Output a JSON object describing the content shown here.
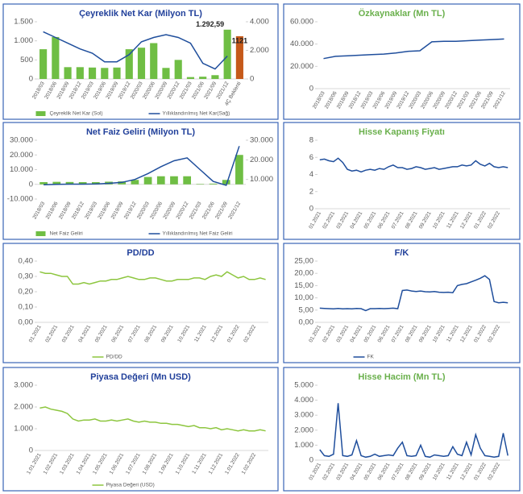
{
  "chart_data": [
    {
      "type": "bar",
      "title": "Çeyreklik Net Kar (Milyon TL)",
      "title_color": "#203f9a",
      "legend": true,
      "categories": [
        "2018/03",
        "2018/06",
        "2018/09",
        "2018/12",
        "2019/03",
        "2019/06",
        "2019/09",
        "2019/12",
        "2020/03",
        "2020/06",
        "2020/09",
        "2020/12",
        "2021/03",
        "2021/06",
        "2021/09",
        "2021/12",
        "4Ç Beklenti"
      ],
      "ylim": [
        0,
        1500
      ],
      "yticks": [
        0,
        500,
        {
          "value": 1000,
          "label": "1.000"
        },
        {
          "value": 1500,
          "label": "1.500"
        }
      ],
      "y2lim": [
        0,
        4000
      ],
      "y2ticks": [
        0,
        {
          "value": 2000,
          "label": "2.000"
        },
        {
          "value": 4000,
          "label": "4.000"
        }
      ],
      "series": [
        {
          "name": "Çeyreklik Net Kar (Sol)",
          "type": "bar",
          "color": "#6fbe44",
          "colors": [
            "#6fbe44",
            "#6fbe44",
            "#6fbe44",
            "#6fbe44",
            "#6fbe44",
            "#6fbe44",
            "#6fbe44",
            "#6fbe44",
            "#6fbe44",
            "#6fbe44",
            "#6fbe44",
            "#6fbe44",
            "#6fbe44",
            "#6fbe44",
            "#6fbe44",
            "#6fbe44",
            "#c5591a"
          ],
          "values": [
            780,
            1100,
            310,
            310,
            300,
            290,
            300,
            780,
            820,
            940,
            290,
            500,
            50,
            60,
            100,
            1292.59,
            1121
          ],
          "value_labels": [
            null,
            null,
            null,
            null,
            null,
            null,
            null,
            null,
            null,
            null,
            null,
            null,
            null,
            null,
            null,
            "1.292,59",
            "1121"
          ]
        },
        {
          "name": "Yıllıklandırılmış Net Kar(Sağ)",
          "type": "line",
          "axis": "y2",
          "color": "#1f4e9c",
          "values": [
            3300,
            2900,
            2500,
            2100,
            1800,
            1200,
            1200,
            1700,
            2600,
            2900,
            3100,
            2900,
            2500,
            1100,
            700,
            1600,
            null
          ]
        }
      ]
    },
    {
      "type": "line",
      "title": "Özkaynaklar (Mn TL)",
      "title_color": "#6ab04c",
      "legend": false,
      "categories": [
        "2018/03",
        "2018/06",
        "2018/09",
        "2018/12",
        "2019/03",
        "2019/06",
        "2019/09",
        "2019/12",
        "2020/03",
        "2020/06",
        "2020/09",
        "2020/12",
        "2021/03",
        "2021/06",
        "2021/09",
        "2021/12"
      ],
      "ylim": [
        0,
        60000
      ],
      "yticks": [
        0,
        {
          "value": 20000,
          "label": "20.000"
        },
        {
          "value": 40000,
          "label": "40.000"
        },
        {
          "value": 60000,
          "label": "60.000"
        }
      ],
      "series": [
        {
          "name": "Özkaynaklar",
          "type": "line",
          "color": "#1f4e9c",
          "values": [
            27000,
            29000,
            29500,
            30000,
            30500,
            31000,
            32000,
            33500,
            34000,
            42000,
            42500,
            42500,
            43000,
            43500,
            44000,
            44500
          ]
        }
      ]
    },
    {
      "type": "bar",
      "title": "Net Faiz Geliri (Milyon TL)",
      "title_color": "#203f9a",
      "legend": true,
      "categories": [
        "2018/03",
        "2018/06",
        "2018/09",
        "2018/12",
        "2019/03",
        "2019/06",
        "2019/09",
        "2019/12",
        "2020/03",
        "2020/06",
        "2020/09",
        "2020/12",
        "2021/03",
        "2021/06",
        "2021/09",
        "2021/12"
      ],
      "ylim": [
        -10000,
        30000
      ],
      "yticks": [
        {
          "value": -10000,
          "label": "-10.000"
        },
        0,
        {
          "value": 10000,
          "label": "10.000"
        },
        {
          "value": 20000,
          "label": "20.000"
        },
        {
          "value": 30000,
          "label": "30.000"
        }
      ],
      "y2lim": [
        0,
        30000
      ],
      "y2ticks": [
        {
          "value": 10000,
          "label": "10.000"
        },
        {
          "value": 20000,
          "label": "20.000"
        },
        {
          "value": 30000,
          "label": "30.000"
        }
      ],
      "series": [
        {
          "name": "Net Faiz Geliri",
          "type": "bar",
          "color": "#6fbe44",
          "values": [
            1500,
            1700,
            1600,
            1500,
            1500,
            1800,
            2000,
            3000,
            5000,
            5500,
            5500,
            5500,
            300,
            500,
            3000,
            20000
          ]
        },
        {
          "name": "Yıllıklandırılmış Net Faiz Geliri",
          "type": "line",
          "axis": "y2",
          "color": "#1f4e9c",
          "values": [
            7300,
            7500,
            7600,
            7600,
            7700,
            8000,
            8500,
            10000,
            13000,
            16500,
            19500,
            21000,
            15000,
            9000,
            7000,
            27000
          ]
        }
      ]
    },
    {
      "type": "line",
      "title": "Hisse Kapanış Fiyatı",
      "title_color": "#6ab04c",
      "legend": false,
      "categories": [
        "01.2021",
        null,
        null,
        "02.2021",
        null,
        null,
        "03.2021",
        null,
        null,
        "04.2021",
        null,
        null,
        "05.2021",
        null,
        null,
        "06.2021",
        null,
        null,
        "07.2021",
        null,
        null,
        "08.2021",
        null,
        null,
        "09.2021",
        null,
        null,
        "10.2021",
        null,
        null,
        "11.2021",
        null,
        null,
        "12.2021",
        null,
        null,
        "01.2022",
        null,
        null,
        "02.2022",
        null,
        null
      ],
      "ylim": [
        0,
        8
      ],
      "yticks": [
        0,
        2,
        4,
        6,
        8
      ],
      "series": [
        {
          "name": "Hisse Kapanış Fiyatı",
          "type": "line",
          "color": "#1f4e9c",
          "values": [
            5.7,
            5.8,
            5.6,
            5.5,
            5.9,
            5.4,
            4.6,
            4.4,
            4.5,
            4.3,
            4.5,
            4.6,
            4.5,
            4.7,
            4.6,
            4.9,
            5.1,
            4.8,
            4.8,
            4.6,
            4.7,
            4.9,
            4.8,
            4.6,
            4.7,
            4.8,
            4.6,
            4.7,
            4.8,
            4.9,
            4.9,
            5.1,
            5.0,
            5.1,
            5.6,
            5.2,
            5.0,
            5.3,
            4.9,
            4.8,
            4.9,
            4.8
          ]
        }
      ]
    },
    {
      "type": "line",
      "title": "PD/DD",
      "title_color": "#203f9a",
      "legend": true,
      "categories": [
        "01.2021",
        null,
        null,
        "02.2021",
        null,
        null,
        "03.2021",
        null,
        null,
        "04.2021",
        null,
        null,
        "05.2021",
        null,
        null,
        "06.2021",
        null,
        null,
        "07.2021",
        null,
        null,
        "08.2021",
        null,
        null,
        "09.2021",
        null,
        null,
        "10.2021",
        null,
        null,
        "11.2021",
        null,
        null,
        "12.2021",
        null,
        null,
        "01.2022",
        null,
        null,
        "02.2022",
        null,
        null
      ],
      "ylim": [
        0,
        0.4
      ],
      "yticks": [
        {
          "value": 0,
          "label": "0,00"
        },
        {
          "value": 0.1,
          "label": "0,10"
        },
        {
          "value": 0.2,
          "label": "0,20"
        },
        {
          "value": 0.3,
          "label": "0,30"
        },
        {
          "value": 0.4,
          "label": "0,40"
        }
      ],
      "series": [
        {
          "name": "PD/DD",
          "type": "line",
          "color": "#8dc63f",
          "values": [
            0.33,
            0.32,
            0.32,
            0.31,
            0.3,
            0.3,
            0.25,
            0.25,
            0.26,
            0.25,
            0.26,
            0.27,
            0.27,
            0.28,
            0.28,
            0.29,
            0.3,
            0.29,
            0.28,
            0.28,
            0.29,
            0.29,
            0.28,
            0.27,
            0.27,
            0.28,
            0.28,
            0.28,
            0.29,
            0.29,
            0.28,
            0.3,
            0.31,
            0.3,
            0.33,
            0.31,
            0.29,
            0.3,
            0.28,
            0.28,
            0.29,
            0.28
          ]
        }
      ]
    },
    {
      "type": "line",
      "title": "F/K",
      "title_color": "#203f9a",
      "legend": true,
      "categories": [
        "01.2021",
        null,
        null,
        "02.2021",
        null,
        null,
        "03.2021",
        null,
        null,
        "04.2021",
        null,
        null,
        "05.2021",
        null,
        null,
        "06.2021",
        null,
        null,
        "07.2021",
        null,
        null,
        "08.2021",
        null,
        null,
        "09.2021",
        null,
        null,
        "10.2021",
        null,
        null,
        "11.2021",
        null,
        null,
        "12.2021",
        null,
        null,
        "01.2022",
        null,
        null,
        "02.2022",
        null,
        null
      ],
      "ylim": [
        0,
        25
      ],
      "yticks": [
        {
          "value": 0,
          "label": "0,00"
        },
        {
          "value": 5,
          "label": "5,00"
        },
        {
          "value": 10,
          "label": "10,00"
        },
        {
          "value": 15,
          "label": "15,00"
        },
        {
          "value": 20,
          "label": "20,00"
        },
        {
          "value": 25,
          "label": "25,00"
        }
      ],
      "series": [
        {
          "name": "FK",
          "type": "line",
          "color": "#1f4e9c",
          "values": [
            5.8,
            5.7,
            5.6,
            5.5,
            5.7,
            5.5,
            5.6,
            5.5,
            5.7,
            5.6,
            4.8,
            5.6,
            5.6,
            5.7,
            5.6,
            5.7,
            5.8,
            5.6,
            13.0,
            13.2,
            12.8,
            12.6,
            12.8,
            12.5,
            12.4,
            12.6,
            12.3,
            12.2,
            12.3,
            12.1,
            15.0,
            15.5,
            15.8,
            16.5,
            17.2,
            18.0,
            19.0,
            17.5,
            8.5,
            8.0,
            8.2,
            8.0
          ]
        }
      ]
    },
    {
      "type": "line",
      "title": "Piyasa Değeri (Mn  USD)",
      "title_color": "#203f9a",
      "legend": true,
      "categories": [
        "1.01.2021",
        null,
        null,
        "1.02.2021",
        null,
        null,
        "1.03.2021",
        null,
        null,
        "1.04.2021",
        null,
        null,
        "1.05.2021",
        null,
        null,
        "1.06.2021",
        null,
        null,
        "1.07.2021",
        null,
        null,
        "1.08.2021",
        null,
        null,
        "1.09.2021",
        null,
        null,
        "1.10.2021",
        null,
        null,
        "1.11.2021",
        null,
        null,
        "1.12.2021",
        null,
        null,
        "1.01.2022",
        null,
        null,
        "1.02.2022",
        null,
        null
      ],
      "ylim": [
        0,
        3000
      ],
      "yticks": [
        0,
        {
          "value": 1000,
          "label": "1.000"
        },
        {
          "value": 2000,
          "label": "2.000"
        },
        {
          "value": 3000,
          "label": "3.000"
        }
      ],
      "series": [
        {
          "name": "Piyasa Değeri (USD)",
          "type": "line",
          "color": "#8dc63f",
          "values": [
            1950,
            2000,
            1900,
            1850,
            1800,
            1700,
            1450,
            1350,
            1400,
            1400,
            1450,
            1350,
            1350,
            1400,
            1350,
            1400,
            1450,
            1350,
            1300,
            1350,
            1300,
            1300,
            1250,
            1250,
            1200,
            1200,
            1150,
            1100,
            1150,
            1050,
            1050,
            1000,
            1050,
            950,
            1000,
            950,
            900,
            950,
            900,
            900,
            950,
            900
          ]
        }
      ]
    },
    {
      "type": "line",
      "title": "Hisse Hacim (Mn TL)",
      "title_color": "#6ab04c",
      "legend": false,
      "categories": [
        "01.2021",
        null,
        null,
        "02.2021",
        null,
        null,
        "03.2021",
        null,
        null,
        "04.2021",
        null,
        null,
        "05.2021",
        null,
        null,
        "06.2021",
        null,
        null,
        "07.2021",
        null,
        null,
        "08.2021",
        null,
        null,
        "09.2021",
        null,
        null,
        "10.2021",
        null,
        null,
        "11.2021",
        null,
        null,
        "12.2021",
        null,
        null,
        "01.2022",
        null,
        null,
        "02.2022",
        null,
        null
      ],
      "ylim": [
        0,
        5000
      ],
      "yticks": [
        0,
        {
          "value": 1000,
          "label": "1.000"
        },
        {
          "value": 2000,
          "label": "2.000"
        },
        {
          "value": 3000,
          "label": "3.000"
        },
        {
          "value": 4000,
          "label": "4.000"
        },
        {
          "value": 5000,
          "label": "5.000"
        }
      ],
      "series": [
        {
          "name": "Hisse Hacim",
          "type": "line",
          "color": "#1f4e9c",
          "values": [
            700,
            300,
            250,
            400,
            3800,
            300,
            250,
            350,
            1300,
            300,
            200,
            250,
            400,
            250,
            300,
            350,
            300,
            800,
            1200,
            300,
            250,
            300,
            1000,
            250,
            200,
            350,
            300,
            250,
            300,
            900,
            400,
            300,
            1200,
            350,
            1700,
            800,
            300,
            250,
            200,
            250,
            1800,
            300
          ]
        }
      ]
    }
  ]
}
